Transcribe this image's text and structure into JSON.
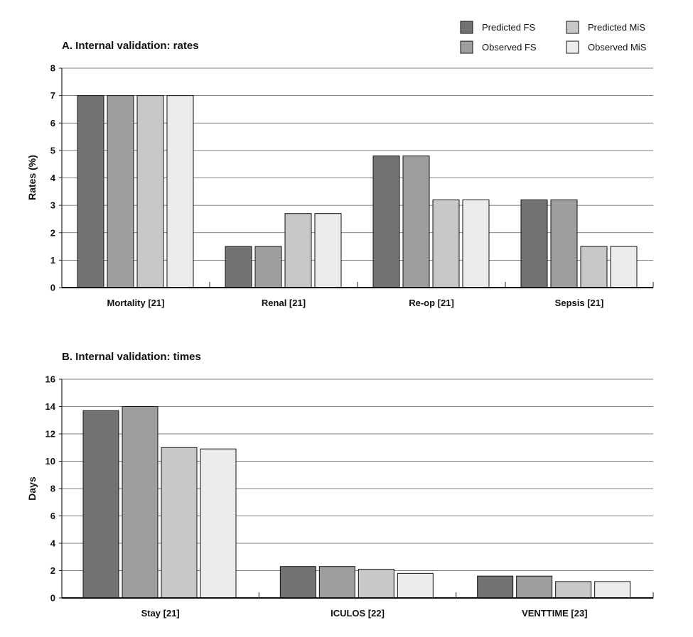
{
  "legend": {
    "items": [
      {
        "label": "Predicted FS",
        "color": "#737373"
      },
      {
        "label": "Observed FS",
        "color": "#9e9e9e"
      },
      {
        "label": "Predicted MiS",
        "color": "#c8c8c8"
      },
      {
        "label": "Observed MiS",
        "color": "#ececec"
      }
    ]
  },
  "chart_data": [
    {
      "type": "bar",
      "title": "A. Internal validation: rates",
      "xlabel": "",
      "ylabel": "Rates (%)",
      "ylim": [
        0,
        8
      ],
      "yticks": [
        0,
        1,
        2,
        3,
        4,
        5,
        6,
        7,
        8
      ],
      "grid": true,
      "legend_position": "top-right",
      "categories": [
        "Mortality [21]",
        "Renal [21]",
        "Re-op [21]",
        "Sepsis [21]"
      ],
      "series": [
        {
          "name": "Predicted FS",
          "values": [
            7.0,
            1.5,
            4.8,
            3.2
          ]
        },
        {
          "name": "Observed FS",
          "values": [
            7.0,
            1.5,
            4.8,
            3.2
          ]
        },
        {
          "name": "Predicted MiS",
          "values": [
            7.0,
            2.7,
            3.2,
            1.5
          ]
        },
        {
          "name": "Observed MiS",
          "values": [
            7.0,
            2.7,
            3.2,
            1.5
          ]
        }
      ]
    },
    {
      "type": "bar",
      "title": "B. Internal validation: times",
      "xlabel": "",
      "ylabel": "Days",
      "ylim": [
        0,
        16
      ],
      "yticks": [
        0,
        2,
        4,
        6,
        8,
        10,
        12,
        14,
        16
      ],
      "grid": true,
      "categories": [
        "Stay [21]",
        "ICULOS [22]",
        "VENTTIME [23]"
      ],
      "series": [
        {
          "name": "Predicted FS",
          "values": [
            13.7,
            2.3,
            1.6
          ]
        },
        {
          "name": "Observed FS",
          "values": [
            14.0,
            2.3,
            1.6
          ]
        },
        {
          "name": "Predicted MiS",
          "values": [
            11.0,
            2.1,
            1.2
          ]
        },
        {
          "name": "Observed MiS",
          "values": [
            10.9,
            1.8,
            1.2
          ]
        }
      ]
    }
  ]
}
